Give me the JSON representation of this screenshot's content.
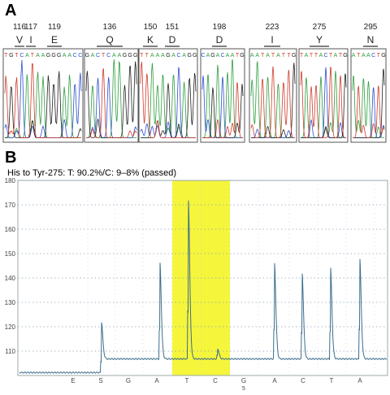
{
  "panel_a": {
    "label": "A",
    "positions": [
      {
        "num": "116",
        "aa": "V",
        "seq": ""
      },
      {
        "num": "117",
        "aa": "I",
        "seq": ""
      },
      {
        "num": "119",
        "aa": "E",
        "seq": ""
      },
      {
        "num": "136",
        "aa": "Q",
        "seq": ""
      },
      {
        "num": "150",
        "aa": "K",
        "seq": ""
      },
      {
        "num": "151",
        "aa": "D",
        "seq": ""
      },
      {
        "num": "198",
        "aa": "D",
        "seq": ""
      },
      {
        "num": "223",
        "aa": "I",
        "seq": ""
      },
      {
        "num": "275",
        "aa": "Y",
        "seq": ""
      },
      {
        "num": "295",
        "aa": "N",
        "seq": ""
      }
    ],
    "chromatogram_sequences": [
      "TGTCATAAGGGAACC",
      "GACTCAAGGG",
      "TTAAAGACAGG",
      "CAGACAATG",
      "AATATATTG",
      "TATTACTATG",
      "ATAACTG"
    ],
    "base_colors": {
      "A": "#2e9e3e",
      "C": "#2b4fd0",
      "G": "#222222",
      "T": "#d23b2b"
    }
  },
  "panel_b": {
    "label": "B",
    "title": "His to Tyr-275: T: 90.2%/C: 9–8% (passed)",
    "highlight_color": "#f5f53c",
    "line_color": "#3c6e8c",
    "dispensation_sequence": [
      "E",
      "S",
      "G",
      "A",
      "T",
      "C",
      "G",
      "A",
      "C",
      "T",
      "A"
    ],
    "dispensation_number": "5",
    "highlighted_bases": [
      "T",
      "C"
    ]
  },
  "chart_data": {
    "type": "line",
    "title": "His to Tyr-275: T: 90.2%/C: 9–8% (passed)",
    "ylim": [
      100,
      180
    ],
    "yticks": [
      110,
      120,
      130,
      140,
      150,
      160,
      170,
      180
    ],
    "grid": true,
    "categories": [
      "E",
      "S",
      "G",
      "A",
      "T",
      "C",
      "G",
      "A",
      "C",
      "T",
      "A"
    ],
    "series": [
      {
        "peaks": [
          0,
          122,
          0,
          146,
          172,
          111,
          0,
          146,
          142,
          144,
          148
        ]
      }
    ]
  }
}
